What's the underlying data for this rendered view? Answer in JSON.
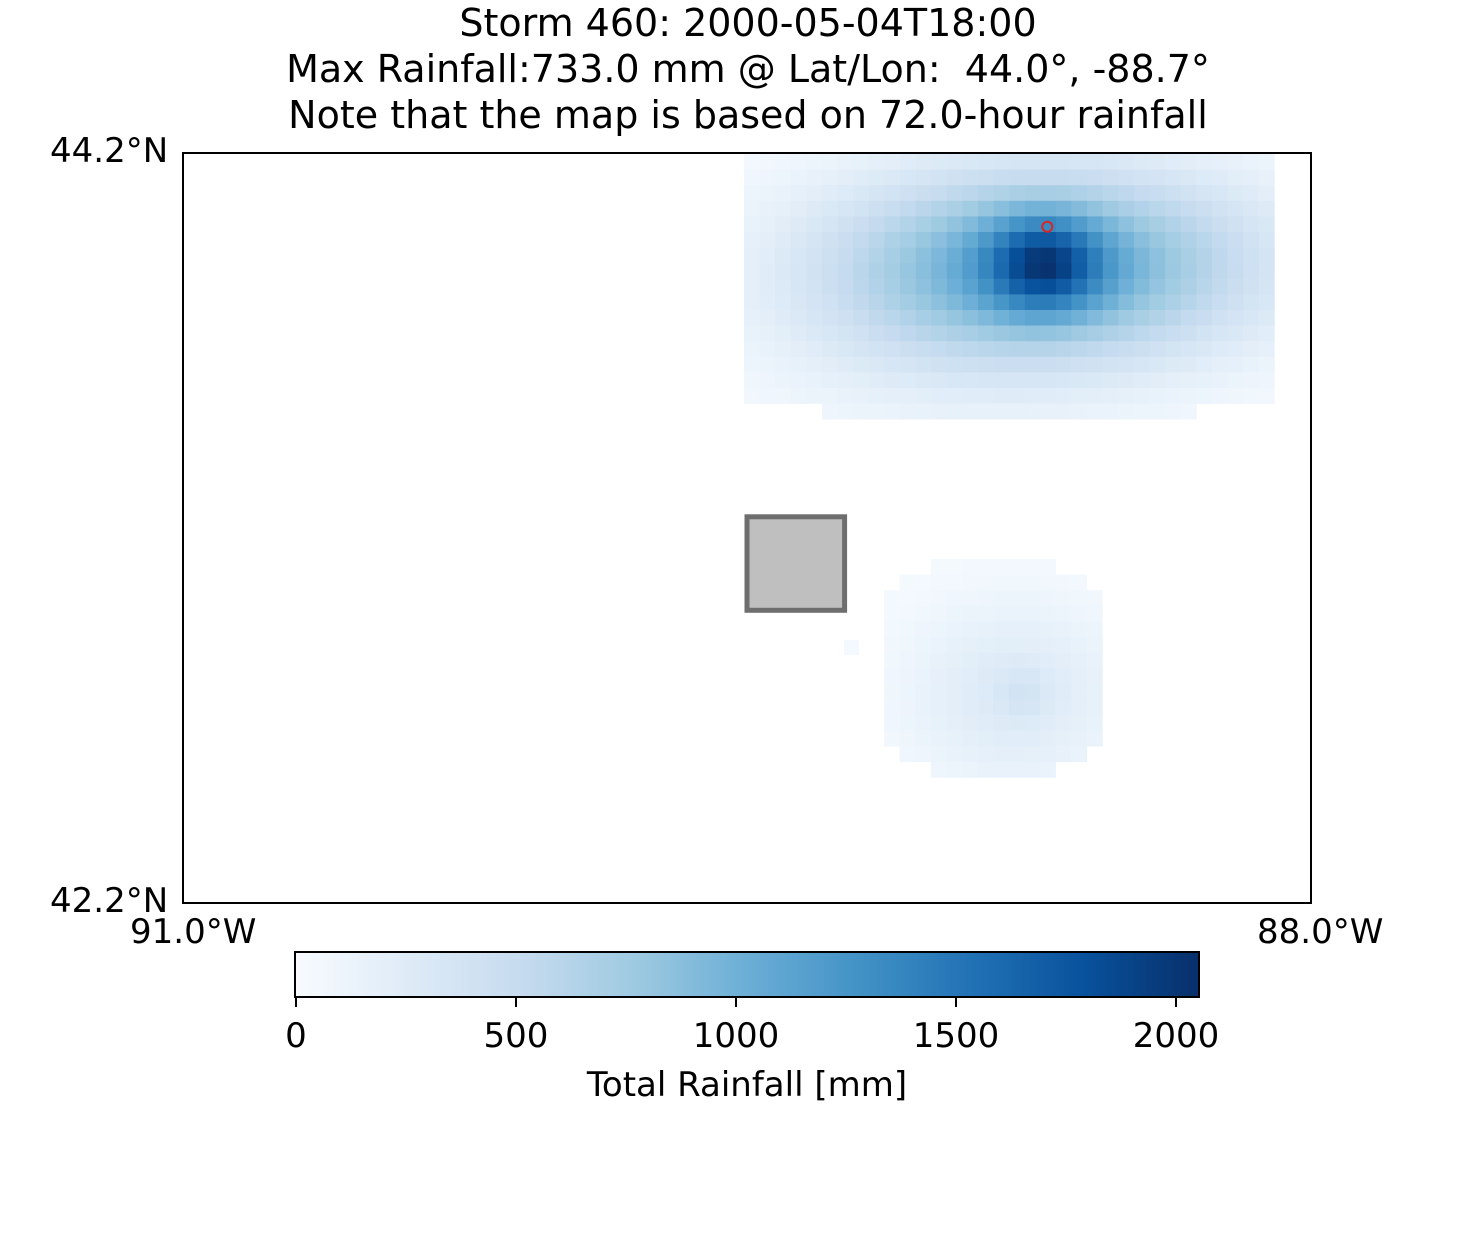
{
  "title": {
    "line1": "Storm 460: 2000-05-04T18:00",
    "line2": "Max Rainfall:733.0 mm @ Lat/Lon:  44.0°, -88.7°",
    "line3": "Note that the map is based on 72.0-hour rainfall"
  },
  "axes": {
    "lat_top_label": "44.2°N",
    "lat_bottom_label": "42.2°N",
    "lon_left_label": "91.0°W",
    "lon_right_label": "88.0°W",
    "lat_range": [
      42.2,
      44.2
    ],
    "lon_range": [
      -91.0,
      -88.0
    ]
  },
  "colorbar": {
    "label": "Total Rainfall [mm]",
    "range": [
      0,
      2050
    ],
    "ticks": [
      {
        "value": 0,
        "label": "0"
      },
      {
        "value": 500,
        "label": "500"
      },
      {
        "value": 1000,
        "label": "1000"
      },
      {
        "value": 1500,
        "label": "1500"
      },
      {
        "value": 2000,
        "label": "2000"
      }
    ],
    "colormap": "Blues",
    "stops": [
      "#f7fbff",
      "#deebf7",
      "#c6dbef",
      "#9ecae1",
      "#6baed6",
      "#4292c6",
      "#2171b5",
      "#08519c",
      "#08306b"
    ]
  },
  "map": {
    "max_location": {
      "lat": 44.0,
      "lon": -88.7,
      "value_mm": 733.0,
      "marker_color": "#d62728"
    },
    "study_area": {
      "lat_range": [
        42.98,
        43.23
      ],
      "lon_range": [
        -89.5,
        -89.24
      ],
      "fill": "#bfbfbf",
      "stroke": "#6e6e6e"
    },
    "rain_cells": [
      {
        "lat": 44.05,
        "lon": -88.76,
        "value_mm": 733
      },
      {
        "lat": 44.0,
        "lon": -88.7,
        "value_mm": 733
      }
    ]
  }
}
